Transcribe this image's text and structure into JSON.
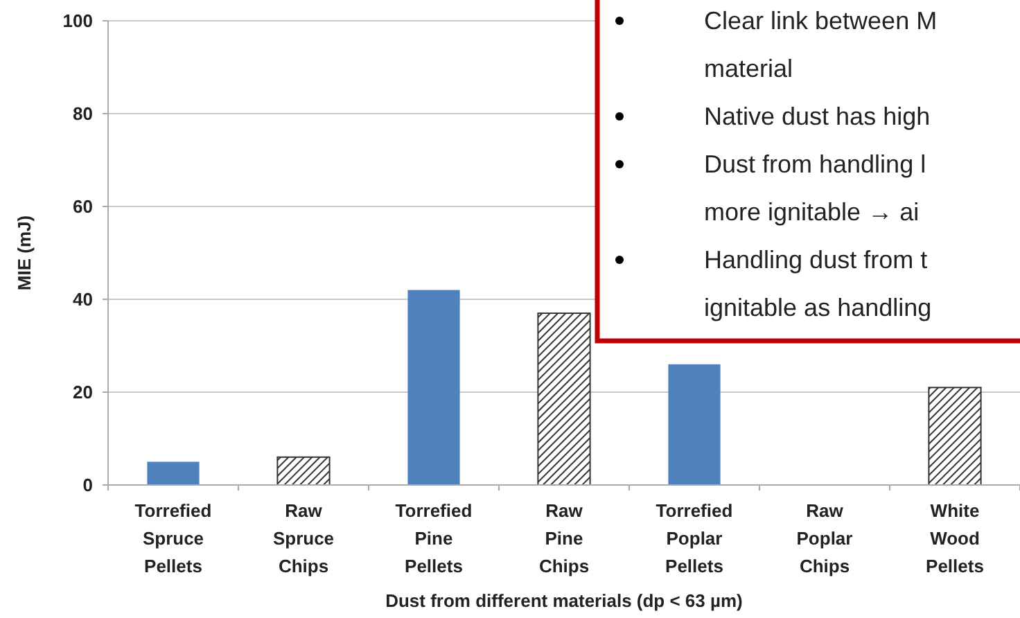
{
  "chart_data": {
    "type": "bar",
    "xlabel": "Dust from different materials (dp < 63 µm)",
    "ylabel": "MIE (mJ)",
    "categories": [
      "Torrefied Spruce Pellets",
      "Raw Spruce Chips",
      "Torrefied Pine Pellets",
      "Raw Pine Chips",
      "Torrefied Poplar Pellets",
      "Raw Poplar Chips",
      "White Wood Pellets"
    ],
    "series": [
      {
        "color": "#4f81bd",
        "values": [
          5,
          null,
          42,
          null,
          26,
          null,
          null
        ]
      },
      {
        "color": "#333333",
        "values": [
          null,
          6,
          null,
          37,
          null,
          null,
          21
        ]
      }
    ],
    "ylim": [
      0,
      100
    ],
    "yticks": [
      0,
      20,
      40,
      60,
      80,
      100
    ],
    "grid": "y",
    "annotations": [
      "Clear link between M\nmaterial",
      "Native dust has high",
      "Dust from handling l\nmore ignitable → ai",
      "Handling dust from t\nignitable as handling"
    ]
  }
}
